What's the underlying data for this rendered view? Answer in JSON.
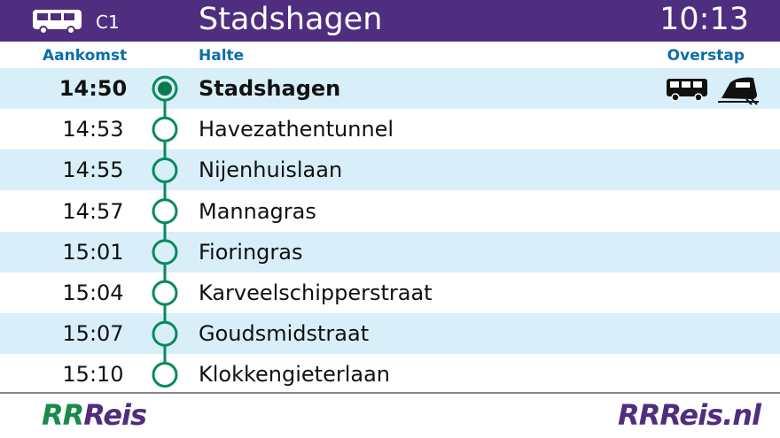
{
  "header": {
    "line": "C1",
    "destination": "Stadshagen",
    "time": "10:13"
  },
  "columns": {
    "arrival": "Aankomst",
    "stop": "Halte",
    "transfer": "Overstap"
  },
  "stops": [
    {
      "time": "14:50",
      "name": "Stadshagen"
    },
    {
      "time": "14:53",
      "name": "Havezathentunnel"
    },
    {
      "time": "14:55",
      "name": "Nijenhuislaan"
    },
    {
      "time": "14:57",
      "name": "Mannagras"
    },
    {
      "time": "15:01",
      "name": "Fioringras"
    },
    {
      "time": "15:04",
      "name": "Karveelschipperstraat"
    },
    {
      "time": "15:07",
      "name": "Goudsmidstraat"
    },
    {
      "time": "15:10",
      "name": "Klokkengieterlaan"
    }
  ],
  "footer": {
    "logo": {
      "mark": "RR",
      "name": "Reis"
    },
    "website": "RRReis.nl"
  }
}
